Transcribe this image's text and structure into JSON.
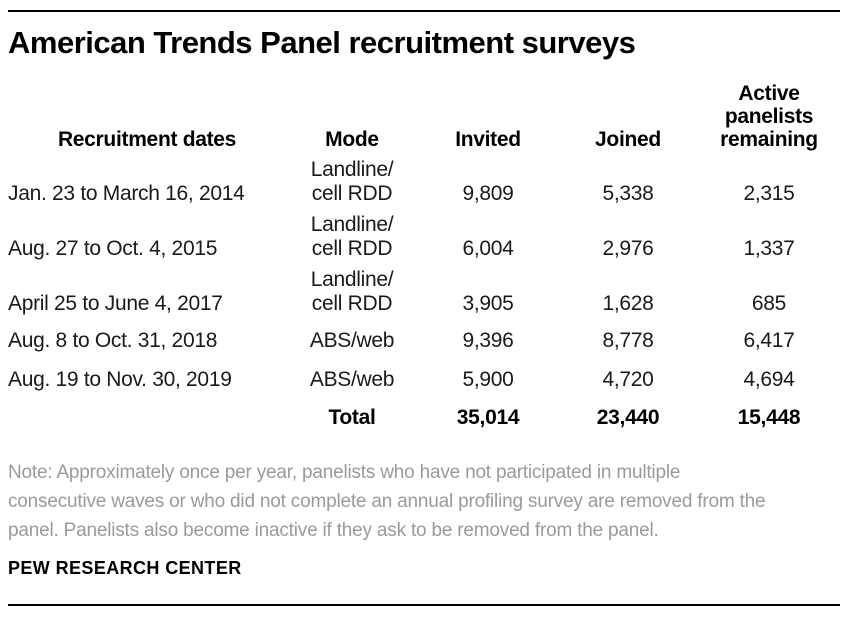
{
  "colors": {
    "background": "#ffffff",
    "title_text": "#000000",
    "body_text": "#1a1a1a",
    "note_text": "#9a9a9a",
    "rule": "#000000"
  },
  "header": {
    "title": "American Trends Panel recruitment surveys"
  },
  "table": {
    "headers": {
      "dates": "Recruitment dates",
      "mode": "Mode",
      "invited": "Invited",
      "joined": "Joined",
      "active": "Active\npanelists\nremaining"
    },
    "rows": [
      {
        "dates": "Jan. 23 to March 16, 2014",
        "mode": "Landline/\ncell RDD",
        "invited": "9,809",
        "joined": "5,338",
        "active": "2,315"
      },
      {
        "dates": "Aug. 27 to Oct. 4, 2015",
        "mode": "Landline/\ncell RDD",
        "invited": "6,004",
        "joined": "2,976",
        "active": "1,337"
      },
      {
        "dates": "April 25 to June 4, 2017",
        "mode": "Landline/\ncell RDD",
        "invited": "3,905",
        "joined": "1,628",
        "active": "685"
      },
      {
        "dates": "Aug. 8 to Oct. 31, 2018",
        "mode": "ABS/web",
        "invited": "9,396",
        "joined": "8,778",
        "active": "6,417"
      },
      {
        "dates": "Aug. 19 to Nov. 30, 2019",
        "mode": "ABS/web",
        "invited": "5,900",
        "joined": "4,720",
        "active": "4,694"
      }
    ],
    "total": {
      "label": "Total",
      "invited": "35,014",
      "joined": "23,440",
      "active": "15,448"
    }
  },
  "note": {
    "lines": [
      "Note: Approximately once per year, panelists who have not participated in multiple",
      "consecutive waves or who did not complete an annual profiling survey are removed from the",
      "panel. Panelists also become inactive if they ask to be removed from the panel."
    ]
  },
  "source": "PEW RESEARCH CENTER",
  "chart_data": {
    "type": "table",
    "title": "American Trends Panel recruitment surveys",
    "columns": [
      "Recruitment dates",
      "Mode",
      "Invited",
      "Joined",
      "Active panelists remaining"
    ],
    "rows": [
      [
        "Jan. 23 to March 16, 2014",
        "Landline/cell RDD",
        9809,
        5338,
        2315
      ],
      [
        "Aug. 27 to Oct. 4, 2015",
        "Landline/cell RDD",
        6004,
        2976,
        1337
      ],
      [
        "April 25 to June 4, 2017",
        "Landline/cell RDD",
        3905,
        1628,
        685
      ],
      [
        "Aug. 8 to Oct. 31, 2018",
        "ABS/web",
        9396,
        8778,
        6417
      ],
      [
        "Aug. 19 to Nov. 30, 2019",
        "ABS/web",
        5900,
        4720,
        4694
      ]
    ],
    "total_row": [
      "Total",
      35014,
      23440,
      15448
    ],
    "note": "Note: Approximately once per year, panelists who have not participated in multiple consecutive waves or who did not complete an annual profiling survey are removed from the panel. Panelists also become inactive if they ask to be removed from the panel.",
    "source": "PEW RESEARCH CENTER"
  }
}
